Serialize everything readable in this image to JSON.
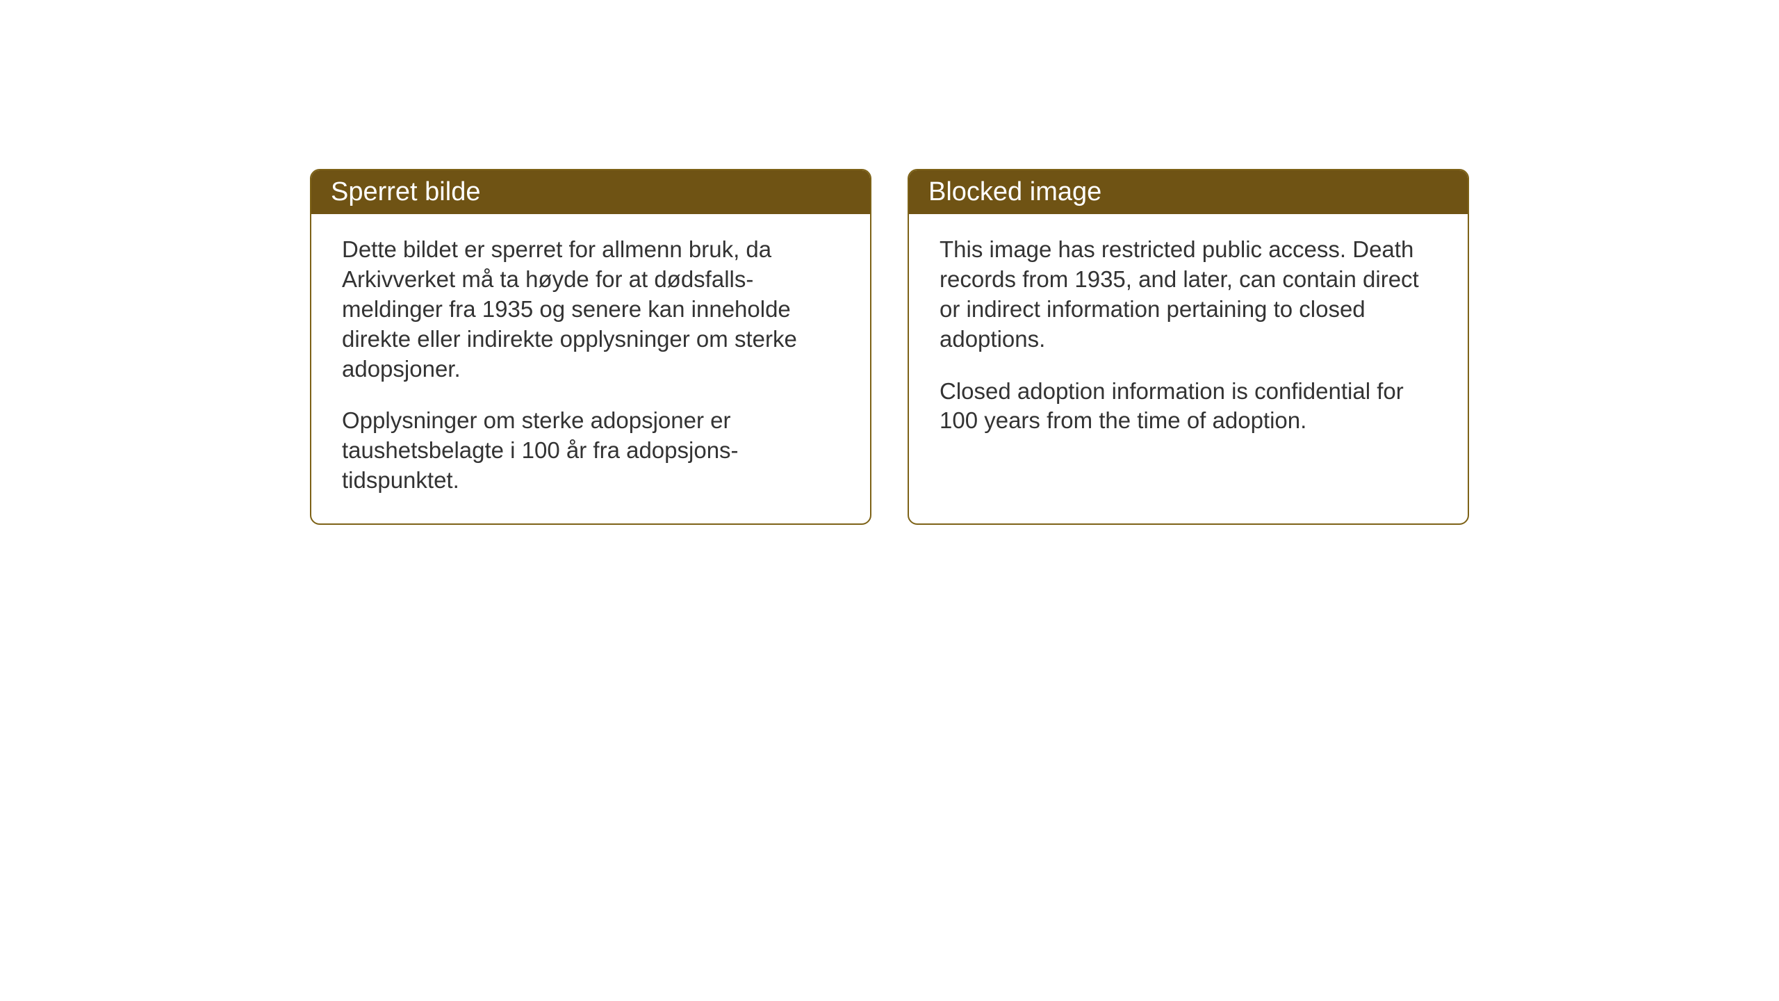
{
  "layout": {
    "background_color": "#ffffff",
    "card_border_color": "#7d6217",
    "header_bg_color": "#6f5314",
    "header_text_color": "#ffffff",
    "body_text_color": "#333333",
    "border_radius": 14,
    "header_fontsize": 38,
    "body_fontsize": 33
  },
  "cards": {
    "left": {
      "title": "Sperret bilde",
      "paragraph1": "Dette bildet er sperret for allmenn bruk, da Arkivverket må ta høyde for at dødsfalls-meldinger fra 1935 og senere kan inneholde direkte eller indirekte opplysninger om sterke adopsjoner.",
      "paragraph2": "Opplysninger om sterke adopsjoner er taushetsbelagte i 100 år fra adopsjons-tidspunktet."
    },
    "right": {
      "title": "Blocked image",
      "paragraph1": "This image has restricted public access. Death records from 1935, and later, can contain direct or indirect information pertaining to closed adoptions.",
      "paragraph2": "Closed adoption information is confidential for 100 years from the time of adoption."
    }
  }
}
